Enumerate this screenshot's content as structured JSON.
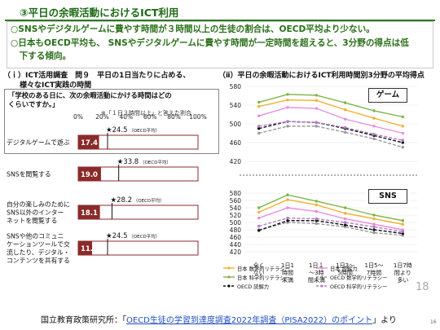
{
  "title": "③平日の余暇活動におけるICT利用",
  "summary": [
    "○SNSやデジタルゲームに費やす時間が３時間以上の生徒の割合は、OECD平均より少ない。",
    "○日本もOECD平均も、 SNSやデジタルゲームに費やす時間が一定時間を超えると、3分野の得点は低",
    "　下する傾向。"
  ],
  "left_heading": [
    "（ｉ）ICT活用調査　問９　平日の1日当たりに占める、",
    "様々なICT実践の時間"
  ],
  "right_heading": "（ⅱ）平日の余暇活動におけるICT利用時間別3分野の平均得点",
  "question": {
    "text": "「学校のある日に、次の余暇活動にかける時間はどの\nくらいですか。」",
    "note": "※「１日３時間以上」と答えた割合"
  },
  "page_number": "18",
  "footer": {
    "prefix": "国立教育政策研究所：「",
    "link": "OECD生徒の学習到達度調査2022年調査（PISA2022）のポイント",
    "suffix": "」より",
    "page": "16"
  },
  "chart_data": [
    {
      "type": "bar",
      "orientation": "horizontal",
      "x_ticks": [
        "0%",
        "20%",
        "40%",
        "60%",
        "80%",
        "100%"
      ],
      "xlim": [
        0,
        100
      ],
      "categories": [
        [
          "デジタルゲームで遊ぶ"
        ],
        [
          "SNSを閲覧する"
        ],
        [
          "自分の楽しみのために",
          "SNS以外のインター",
          "ネットを閲覧する"
        ],
        [
          "SNSや他のコミュニ",
          "ケーションツールで交",
          "流したり、デジタル・",
          "コンテンツを共有する"
        ]
      ],
      "values": [
        17.4,
        19.0,
        18.1,
        11.6
      ],
      "value_labels": [
        "17.4",
        "19.0",
        "18.1",
        "11.6"
      ],
      "oecd_values": [
        24.5,
        33.8,
        28.2,
        24.5
      ],
      "oecd_labels": [
        "24.5",
        "33.8",
        "28.2",
        "24.5"
      ],
      "oecd_tag": "（OECD平均）",
      "star": "★",
      "bar_color": "#8b2a2a"
    },
    {
      "type": "line",
      "panel": "ゲーム",
      "categories": [
        [
          "全く",
          "ない"
        ],
        [
          "1日1",
          "時間",
          "未満"
        ],
        [
          "1日１",
          "～3時",
          "間未満"
        ],
        [
          "1日3～",
          "5時間"
        ],
        [
          "1日5～",
          "7時間"
        ],
        [
          "1日7時",
          "間より",
          "多い"
        ]
      ],
      "y_ticks": [
        "420",
        "440",
        "460",
        "480",
        "500",
        "520",
        "540",
        "560",
        "580"
      ],
      "ylim": [
        420,
        580
      ],
      "series": [
        {
          "name": "日本 数学的リテラシー",
          "color": "#f2b134",
          "dash": false,
          "values": [
            537,
            551,
            550,
            530,
            512,
            495
          ]
        },
        {
          "name": "日本 読解力",
          "color": "#e98de0",
          "dash": false,
          "values": [
            517,
            535,
            533,
            510,
            495,
            480
          ]
        },
        {
          "name": "日本 科学的リテラシー",
          "color": "#7fb446",
          "dash": false,
          "values": [
            546,
            563,
            561,
            545,
            528,
            515
          ]
        },
        {
          "name": "OECD 数学的リテラシー",
          "color": "#999999",
          "dash": true,
          "values": [
            480,
            495,
            495,
            482,
            468,
            450
          ]
        },
        {
          "name": "OECD 読解力",
          "color": "#111111",
          "dash": true,
          "values": [
            490,
            505,
            503,
            490,
            475,
            460
          ]
        },
        {
          "name": "OECD 科学的リテラシー",
          "color": "#b57cc7",
          "dash": true,
          "values": [
            495,
            505,
            503,
            492,
            478,
            465
          ]
        }
      ]
    },
    {
      "type": "line",
      "panel": "SNS",
      "categories": [
        [
          "全く",
          "ない"
        ],
        [
          "1日1",
          "時間",
          "未満"
        ],
        [
          "1日１",
          "～3時",
          "間未満"
        ],
        [
          "1日3～",
          "5時間"
        ],
        [
          "1日5～",
          "7時間"
        ],
        [
          "1日7時",
          "間より",
          "多い"
        ]
      ],
      "y_ticks": [
        "420",
        "440",
        "460",
        "480",
        "500",
        "520",
        "540",
        "560",
        "580"
      ],
      "ylim": [
        420,
        580
      ],
      "series": [
        {
          "name": "日本 数学的リテラシー",
          "color": "#f2b134",
          "dash": false,
          "values": [
            528,
            562,
            548,
            525,
            510,
            495
          ]
        },
        {
          "name": "日本 読解力",
          "color": "#e98de0",
          "dash": false,
          "values": [
            512,
            540,
            530,
            510,
            495,
            480
          ]
        },
        {
          "name": "日本 科学的リテラシー",
          "color": "#7fb446",
          "dash": false,
          "values": [
            540,
            575,
            558,
            540,
            520,
            505
          ]
        },
        {
          "name": "OECD 数学的リテラシー",
          "color": "#999999",
          "dash": true,
          "values": [
            480,
            500,
            497,
            488,
            472,
            465
          ]
        },
        {
          "name": "OECD 読解力",
          "color": "#111111",
          "dash": true,
          "values": [
            478,
            505,
            505,
            493,
            480,
            470
          ]
        },
        {
          "name": "OECD 科学的リテラシー",
          "color": "#b57cc7",
          "dash": true,
          "values": [
            490,
            512,
            510,
            500,
            488,
            475
          ]
        }
      ]
    }
  ]
}
